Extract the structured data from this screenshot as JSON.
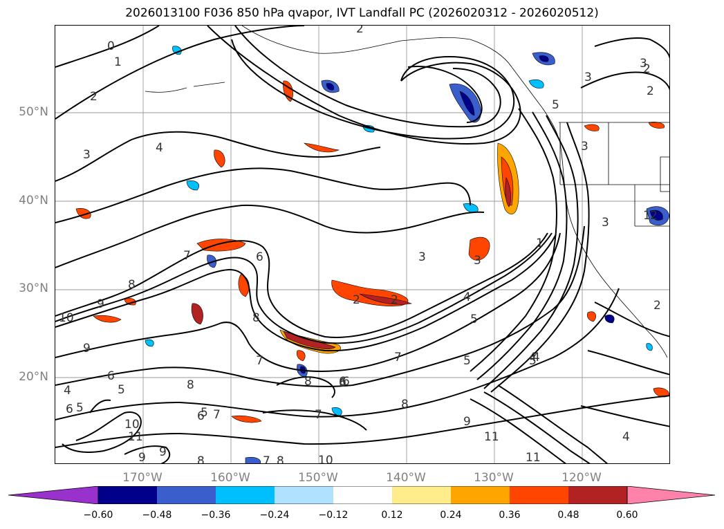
{
  "title": "2026013100 F036 850 hPa qvapor, IVT Landfall PC (2026020312 - 2026020512)",
  "latitude_labels": [
    "50°N",
    "40°N",
    "30°N",
    "20°N"
  ],
  "longitude_labels": [
    "170°W",
    "160°W",
    "150°W",
    "140°W",
    "130°W",
    "120°W"
  ],
  "contour_labels": [
    "2",
    "1",
    "0",
    "2",
    "3",
    "4",
    "2",
    "3",
    "3",
    "7",
    "6",
    "8",
    "9",
    "9",
    "10",
    "8",
    "7",
    "6",
    "5",
    "4",
    "6",
    "8",
    "5",
    "7",
    "8",
    "6",
    "5",
    "10",
    "11",
    "9",
    "9",
    "8",
    "8",
    "7",
    "10",
    "7",
    "6",
    "6",
    "5",
    "4",
    "1",
    "2",
    "3",
    "4",
    "5",
    "6",
    "7",
    "8",
    "9",
    "11",
    "11",
    "3",
    "3",
    "2",
    "5",
    "1",
    "2",
    "4",
    "5",
    "4",
    "3",
    "2",
    "2"
  ],
  "colorbar": {
    "tick_labels": [
      "−0.60",
      "−0.48",
      "−0.36",
      "−0.24",
      "−0.12",
      "0.12",
      "0.24",
      "0.36",
      "0.48",
      "0.60"
    ],
    "colors": [
      "#9932cc",
      "#00008b",
      "#3a5fcd",
      "#00bfff",
      "#b0e2ff",
      "#ffffff",
      "#ffec8b",
      "#ffa500",
      "#ff4500",
      "#b22222",
      "#ff82ab"
    ]
  },
  "colors": {
    "neg_strong": "#00008b",
    "neg_mid": "#3a5fcd",
    "neg_light": "#00bfff",
    "pos_light": "#ffa500",
    "pos_mid": "#ff4500",
    "pos_strong": "#b22222",
    "pos_pale": "#ffec8b",
    "grid": "#999999",
    "axis_text": "#808080"
  }
}
